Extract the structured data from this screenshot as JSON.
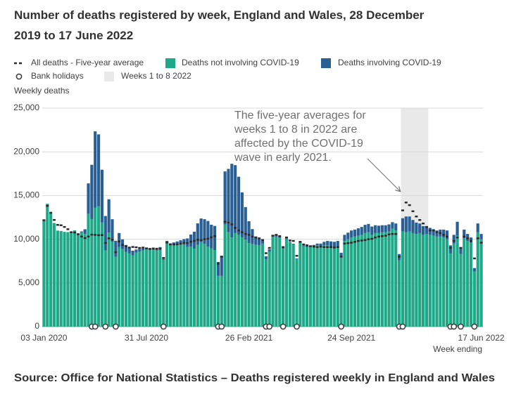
{
  "chart_data": {
    "type": "bar",
    "stacked": true,
    "title": "Number of deaths registered by week, England and Wales, 28 December 2019 to 17 June 2022",
    "y_label": "Weekly deaths",
    "x_label": "Week ending",
    "source": "Source: Office for National Statistics – Deaths registered weekly in England and Wales",
    "annotation": [
      "The five-year averages for",
      "weeks 1 to 8 in 2022 are",
      "affected by the COVID-19",
      "wave in early 2021."
    ],
    "ylim": [
      0,
      25000
    ],
    "yticks": [
      0,
      {
        "value": 5000,
        "label": "5,000"
      },
      {
        "value": 10000,
        "label": "10,000"
      },
      {
        "value": 15000,
        "label": "15,000"
      },
      {
        "value": 20000,
        "label": "20,000"
      },
      {
        "value": 25000,
        "label": "25,000"
      }
    ],
    "grid": true,
    "categories": [
      "03 Jan 2020",
      null,
      null,
      null,
      null,
      null,
      null,
      null,
      null,
      null,
      null,
      null,
      null,
      null,
      null,
      null,
      null,
      null,
      null,
      null,
      null,
      null,
      null,
      null,
      null,
      null,
      null,
      null,
      null,
      null,
      "31 Jul 2020",
      null,
      null,
      null,
      null,
      null,
      null,
      null,
      null,
      null,
      null,
      null,
      null,
      null,
      null,
      null,
      null,
      null,
      null,
      null,
      null,
      null,
      null,
      null,
      null,
      null,
      null,
      null,
      null,
      null,
      "26 Feb 2021",
      null,
      null,
      null,
      null,
      null,
      null,
      null,
      null,
      null,
      null,
      null,
      null,
      null,
      null,
      null,
      null,
      null,
      null,
      null,
      null,
      null,
      null,
      null,
      null,
      null,
      null,
      null,
      null,
      null,
      "24 Sep 2021",
      null,
      null,
      null,
      null,
      null,
      null,
      null,
      null,
      null,
      null,
      null,
      null,
      null,
      null,
      null,
      null,
      null,
      null,
      null,
      null,
      null,
      null,
      null,
      null,
      null,
      null,
      null,
      null,
      null,
      null,
      null,
      null,
      null,
      null,
      null,
      null,
      null,
      "17 Jun 2022"
    ],
    "series": [
      {
        "name": "Deaths not involving COVID-19",
        "color": "#1fa887",
        "values": [
          12254,
          14058,
          12990,
          11856,
          10986,
          10944,
          10841,
          10816,
          10871,
          11019,
          10645,
          10792,
          10602,
          12912,
          12303,
          13593,
          13760,
          11918,
          8727,
          10763,
          9699,
          8002,
          9121,
          8862,
          8556,
          8373,
          8158,
          8457,
          8596,
          8729,
          8839,
          8793,
          8752,
          8711,
          9000,
          7638,
          9733,
          9384,
          9419,
          9420,
          9442,
          9346,
          9111,
          9155,
          8926,
          9346,
          9678,
          9454,
          9156,
          8964,
          8764,
          5800,
          5800,
          11700,
          10800,
          10200,
          10700,
          10500,
          10200,
          9960,
          9550,
          9460,
          9350,
          9300,
          9500,
          7700,
          8600,
          10300,
          10300,
          10150,
          8900,
          10000,
          9600,
          9400,
          7700,
          9600,
          9200,
          9100,
          9100,
          9200,
          9300,
          9200,
          9300,
          9300,
          9200,
          9100,
          9200,
          7900,
          9800,
          10000,
          10200,
          10300,
          10400,
          10500,
          10700,
          10800,
          10500,
          10700,
          10700,
          10800,
          10800,
          10900,
          11200,
          11000,
          7600,
          10900,
          10800,
          10900,
          10700,
          10600,
          10700,
          10500,
          10600,
          10500,
          10400,
          10300,
          10300,
          10200,
          10000,
          8400,
          9500,
          10400,
          8300,
          10100,
          9800,
          9600,
          6300,
          10800,
          10000
        ]
      },
      {
        "name": "Deaths involving COVID-19",
        "color": "#2a5f94",
        "values": [
          0,
          0,
          0,
          0,
          0,
          0,
          0,
          0,
          0,
          0,
          0,
          103,
          539,
          3475,
          6213,
          8758,
          8237,
          6035,
          3930,
          3810,
          2589,
          1822,
          1588,
          1114,
          783,
          606,
          532,
          366,
          295,
          217,
          193,
          152,
          139,
          138,
          100,
          101,
          78,
          139,
          215,
          321,
          438,
          665,
          978,
          1379,
          1937,
          2466,
          2697,
          2838,
          2931,
          2697,
          2756,
          1600,
          2300,
          6057,
          7245,
          8433,
          7776,
          6651,
          5160,
          3721,
          2508,
          1700,
          963,
          741,
          500,
          350,
          250,
          200,
          150,
          120,
          100,
          90,
          80,
          80,
          90,
          90,
          100,
          110,
          120,
          150,
          200,
          300,
          400,
          500,
          550,
          600,
          600,
          550,
          700,
          750,
          800,
          800,
          850,
          900,
          950,
          950,
          950,
          900,
          850,
          800,
          800,
          800,
          750,
          800,
          700,
          1500,
          1800,
          1700,
          1500,
          1300,
          1100,
          1000,
          900,
          800,
          750,
          700,
          800,
          900,
          1000,
          900,
          1000,
          1600,
          800,
          1000,
          800,
          600,
          400,
          1000,
          600
        ]
      }
    ],
    "average": {
      "name": "All deaths - Five-year average",
      "color": "#2b2b2b",
      "values": [
        12175,
        13822,
        13030,
        12206,
        11638,
        11596,
        11405,
        11143,
        10800,
        10770,
        10573,
        10305,
        10130,
        10305,
        10520,
        10497,
        10458,
        10474,
        9576,
        10100,
        9941,
        8516,
        9745,
        9340,
        9200,
        9044,
        9112,
        9074,
        9000,
        9040,
        8954,
        8890,
        8940,
        8912,
        8900,
        7850,
        9620,
        9400,
        9398,
        9412,
        9478,
        9590,
        9560,
        9710,
        9810,
        9930,
        9895,
        10000,
        10055,
        10220,
        10345,
        7200,
        8000,
        12000,
        11900,
        11700,
        11300,
        11000,
        10800,
        10600,
        10500,
        10300,
        10200,
        10100,
        9900,
        8400,
        9000,
        10400,
        10500,
        10350,
        9100,
        10200,
        9850,
        9800,
        8100,
        9700,
        9400,
        9300,
        9200,
        9150,
        9100,
        9150,
        9100,
        9100,
        9100,
        9050,
        9100,
        8000,
        9500,
        9550,
        9600,
        9700,
        9800,
        9850,
        9900,
        10000,
        10050,
        10200,
        10300,
        10350,
        10400,
        10550,
        10600,
        10600,
        8000,
        13300,
        14200,
        13900,
        13200,
        12600,
        12200,
        11800,
        11400,
        11000,
        11000,
        10800,
        10700,
        10500,
        10300,
        9000,
        9800,
        10200,
        9000,
        10300,
        10100,
        9800,
        7800,
        10100,
        9600
      ]
    },
    "bank_holidays": {
      "name": "Bank holidays",
      "values": [
        null,
        null,
        null,
        null,
        null,
        null,
        null,
        null,
        null,
        null,
        null,
        null,
        null,
        null,
        0,
        0,
        null,
        null,
        0,
        null,
        null,
        0,
        null,
        null,
        null,
        null,
        null,
        null,
        null,
        null,
        null,
        null,
        null,
        null,
        null,
        0,
        null,
        null,
        null,
        null,
        null,
        null,
        null,
        null,
        null,
        null,
        null,
        null,
        null,
        null,
        null,
        0,
        0,
        null,
        null,
        null,
        null,
        null,
        null,
        null,
        null,
        null,
        null,
        null,
        null,
        0,
        0,
        null,
        null,
        null,
        0,
        null,
        null,
        null,
        0,
        null,
        null,
        null,
        null,
        null,
        null,
        null,
        null,
        null,
        null,
        null,
        null,
        0,
        null,
        null,
        null,
        null,
        null,
        null,
        null,
        null,
        null,
        null,
        null,
        null,
        null,
        null,
        null,
        null,
        0,
        0,
        null,
        null,
        null,
        null,
        null,
        null,
        null,
        null,
        null,
        null,
        null,
        null,
        null,
        0,
        0,
        null,
        0,
        null,
        null,
        null,
        0,
        null,
        null
      ]
    },
    "highlight": {
      "name": "Weeks 1 to 8 2022",
      "color": "#e9e9e9",
      "span": [
        105,
        112
      ]
    }
  }
}
